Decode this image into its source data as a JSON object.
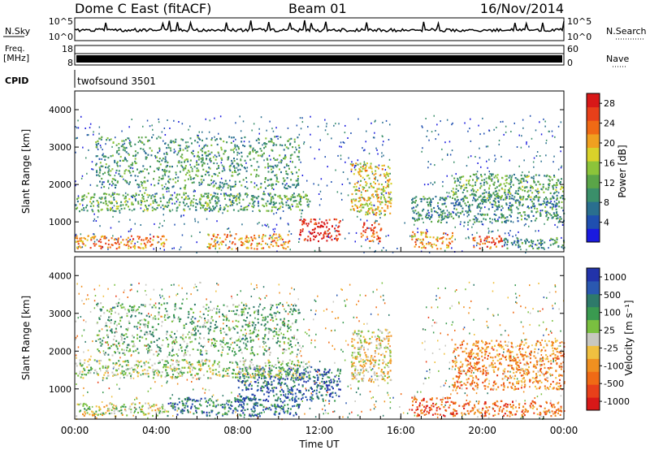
{
  "header": {
    "station": "Dome C East (fitACF)",
    "beam": "Beam 01",
    "date": "16/Nov/2014"
  },
  "status_panels": {
    "nsky_label": "N.Sky",
    "nsearch_label": "N.Search",
    "noise_scale_top": "10^5",
    "noise_scale_bottom": "10^0",
    "freq_label": "Freq.",
    "freq_unit": "[MHz]",
    "freq_scale_top": "18",
    "freq_scale_bottom": "8",
    "nave_label": "Nave",
    "nave_scale_top": "60",
    "nave_scale_bottom": "0",
    "cpid_label": "CPID",
    "cpid_value": "twofsound 3501"
  },
  "colors": {
    "power_scale": [
      "#1a1adf",
      "#1f4fb0",
      "#2a6f8f",
      "#3a8f6a",
      "#5aa548",
      "#8cc43a",
      "#d9d22a",
      "#f0a020",
      "#f06a15",
      "#e8401a",
      "#d81818"
    ],
    "velocity_scale": [
      "#2233aa",
      "#2a58b0",
      "#2e7a6a",
      "#3a9a50",
      "#7ac040",
      "#c8c8c0",
      "#f0c040",
      "#f09020",
      "#f06a15",
      "#e8401a",
      "#d81818"
    ]
  },
  "chart_data": [
    {
      "type": "heatmap",
      "name": "power",
      "ylabel": "Slant Range [km]",
      "xlabel": "Time UT",
      "x_ticks": [
        "00:00",
        "04:00",
        "08:00",
        "12:00",
        "16:00",
        "20:00",
        "00:00"
      ],
      "y_ticks": [
        "1000",
        "2000",
        "3000",
        "4000"
      ],
      "ylim": [
        200,
        4500
      ],
      "xlim_hours": [
        0,
        24
      ],
      "colorbar": {
        "label": "Power [dB]",
        "ticks": [
          "4",
          "8",
          "12",
          "16",
          "20",
          "24",
          "28"
        ],
        "range": [
          0,
          30
        ]
      },
      "regions": [
        {
          "t0": 0.0,
          "t1": 4.5,
          "r0": 300,
          "r1": 650,
          "level": 0.75
        },
        {
          "t0": 6.5,
          "t1": 10.5,
          "r0": 300,
          "r1": 700,
          "level": 0.7
        },
        {
          "t0": 11.0,
          "t1": 13.0,
          "r0": 500,
          "r1": 1100,
          "level": 0.95
        },
        {
          "t0": 14.0,
          "t1": 15.0,
          "r0": 500,
          "r1": 1000,
          "level": 0.85
        },
        {
          "t0": 16.5,
          "t1": 18.5,
          "r0": 300,
          "r1": 750,
          "level": 0.7
        },
        {
          "t0": 19.5,
          "t1": 21.0,
          "r0": 300,
          "r1": 650,
          "level": 0.85
        },
        {
          "t0": 21.0,
          "t1": 24.0,
          "r0": 300,
          "r1": 600,
          "level": 0.3
        },
        {
          "t0": 0.0,
          "t1": 11.5,
          "r0": 1300,
          "r1": 1800,
          "level": 0.4
        },
        {
          "t0": 1.0,
          "t1": 11.0,
          "r0": 1900,
          "r1": 3300,
          "level": 0.35
        },
        {
          "t0": 13.5,
          "t1": 15.5,
          "r0": 1200,
          "r1": 2600,
          "level": 0.6
        },
        {
          "t0": 16.5,
          "t1": 24.0,
          "r0": 1000,
          "r1": 1700,
          "level": 0.3
        },
        {
          "t0": 18.5,
          "t1": 24.0,
          "r0": 1600,
          "r1": 2300,
          "level": 0.4
        }
      ]
    },
    {
      "type": "heatmap",
      "name": "velocity",
      "ylabel": "Slant Range [km]",
      "xlabel": "Time UT",
      "x_ticks": [
        "00:00",
        "04:00",
        "08:00",
        "12:00",
        "16:00",
        "20:00",
        "00:00"
      ],
      "y_ticks": [
        "1000",
        "2000",
        "3000",
        "4000"
      ],
      "ylim": [
        200,
        4500
      ],
      "xlim_hours": [
        0,
        24
      ],
      "colorbar": {
        "label": "Velocity [m s⁻¹]",
        "ticks": [
          "1000",
          "500",
          "100",
          "25",
          "-25",
          "-100",
          "-500",
          "-1000"
        ],
        "range": [
          -1000,
          1000
        ]
      },
      "regions": [
        {
          "t0": 0.0,
          "t1": 4.5,
          "r0": 300,
          "r1": 650,
          "level": 0.5
        },
        {
          "t0": 4.5,
          "t1": 11.0,
          "r0": 300,
          "r1": 800,
          "level": 0.2
        },
        {
          "t0": 8.0,
          "t1": 13.0,
          "r0": 700,
          "r1": 1600,
          "level": 0.15
        },
        {
          "t0": 16.5,
          "t1": 18.5,
          "r0": 300,
          "r1": 800,
          "level": 0.82
        },
        {
          "t0": 18.5,
          "t1": 24.0,
          "r0": 300,
          "r1": 700,
          "level": 0.78
        },
        {
          "t0": 0.0,
          "t1": 11.5,
          "r0": 1300,
          "r1": 1800,
          "level": 0.45
        },
        {
          "t0": 1.0,
          "t1": 11.0,
          "r0": 1900,
          "r1": 3300,
          "level": 0.35
        },
        {
          "t0": 13.5,
          "t1": 15.5,
          "r0": 1200,
          "r1": 2600,
          "level": 0.55
        },
        {
          "t0": 18.5,
          "t1": 24.0,
          "r0": 1000,
          "r1": 2300,
          "level": 0.7
        }
      ]
    }
  ]
}
